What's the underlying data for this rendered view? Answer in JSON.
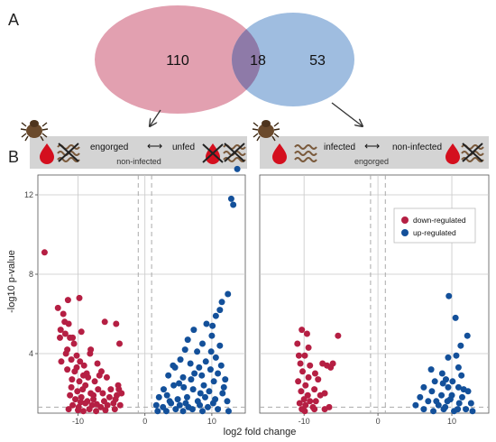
{
  "panels": {
    "a": "A",
    "b": "B"
  },
  "venn": {
    "left_only": "110",
    "overlap": "18",
    "right_only": "53",
    "left_color": "#e2a0b0",
    "right_color": "#9fbde0",
    "overlap_color": "#8e7aa8"
  },
  "conditions": {
    "left": {
      "from": "engorged",
      "arrow": "⟷",
      "to": "unfed",
      "sub": "non-infected"
    },
    "right": {
      "from": "infected",
      "arrow": "⟷",
      "to": "non-infected",
      "sub": "engorged"
    }
  },
  "colors": {
    "down": "#b51f43",
    "up": "#13509a",
    "banner": "#d4d4d4",
    "grid": "#c8c8c8"
  },
  "legend": {
    "down": "down-regulated",
    "up": "up-regulated"
  },
  "chart_data": [
    {
      "type": "scatter",
      "title": "",
      "xlabel": "log2 fold change",
      "ylabel": "-log10 p-value",
      "xlim": [
        -16,
        15
      ],
      "ylim": [
        1,
        13
      ],
      "xticks": [
        -10,
        0,
        10
      ],
      "yticks": [
        4,
        8,
        12
      ],
      "thresholds": {
        "x": [
          -1,
          1
        ],
        "y": 1.3
      },
      "series": [
        {
          "name": "down-regulated",
          "points": [
            [
              -15,
              9.1
            ],
            [
              -11.5,
              6.7
            ],
            [
              -12.2,
              6.0
            ],
            [
              -12,
              5.6
            ],
            [
              -11.4,
              5.5
            ],
            [
              -12.6,
              5.2
            ],
            [
              -11.9,
              5.0
            ],
            [
              -11.2,
              4.8
            ],
            [
              -10.6,
              4.5
            ],
            [
              -9.8,
              6.8
            ],
            [
              -9.5,
              5.1
            ],
            [
              -8.2,
              4.0
            ],
            [
              -10.2,
              3.9
            ],
            [
              -11,
              3.7
            ],
            [
              -9.7,
              3.6
            ],
            [
              -11.6,
              3.2
            ],
            [
              -10.5,
              3.1
            ],
            [
              -9.1,
              3.4
            ],
            [
              -8.7,
              3.0
            ],
            [
              -10.9,
              2.7
            ],
            [
              -9.8,
              2.6
            ],
            [
              -8.5,
              2.8
            ],
            [
              -7.5,
              2.6
            ],
            [
              -6.8,
              2.9
            ],
            [
              -11,
              2.3
            ],
            [
              -10.1,
              2.1
            ],
            [
              -9.3,
              2.2
            ],
            [
              -8.1,
              2.0
            ],
            [
              -7,
              2.2
            ],
            [
              -6.3,
              2.0
            ],
            [
              -5.1,
              2.2
            ],
            [
              -4,
              2.4
            ],
            [
              -11.2,
              1.9
            ],
            [
              -10.4,
              1.7
            ],
            [
              -9.5,
              1.8
            ],
            [
              -8.6,
              1.6
            ],
            [
              -7.7,
              1.7
            ],
            [
              -6.1,
              1.6
            ],
            [
              -5.3,
              1.8
            ],
            [
              -4.2,
              1.9
            ],
            [
              -3.5,
              2.0
            ],
            [
              -10.8,
              1.4
            ],
            [
              -9.9,
              1.3
            ],
            [
              -8.9,
              1.5
            ],
            [
              -7.9,
              1.4
            ],
            [
              -6.6,
              1.3
            ],
            [
              -5.6,
              1.4
            ],
            [
              -4.7,
              1.5
            ],
            [
              -3.7,
              1.4
            ],
            [
              -10,
              1.15
            ],
            [
              -9.2,
              1.1
            ],
            [
              -8.3,
              1.2
            ],
            [
              -7.3,
              1.1
            ],
            [
              -5.9,
              1.15
            ],
            [
              -4.5,
              1.2
            ],
            [
              -3.9,
              2.2
            ],
            [
              -6,
              5.6
            ],
            [
              -4.3,
              5.5
            ],
            [
              -3.8,
              4.5
            ],
            [
              -12.7,
              4.8
            ],
            [
              -11.6,
              4.2
            ],
            [
              -12.5,
              3.6
            ],
            [
              -13,
              6.3
            ],
            [
              -8.1,
              4.2
            ],
            [
              -6.5,
              3.1
            ],
            [
              -7.1,
              3.5
            ],
            [
              -9.2,
              2.9
            ],
            [
              -10.8,
              4.8
            ],
            [
              -11.8,
              4.0
            ],
            [
              -10.2,
              3.3
            ],
            [
              -7.7,
              1.9
            ],
            [
              -8.9,
              2.4
            ],
            [
              -5.7,
              2.8
            ],
            [
              -4.4,
              1.7
            ],
            [
              -11.4,
              1.2
            ],
            [
              -9.6,
              1.55
            ],
            [
              -7.2,
              1.45
            ]
          ]
        },
        {
          "name": "up-regulated",
          "points": [
            [
              13.8,
              13.3
            ],
            [
              13.2,
              11.5
            ],
            [
              12.9,
              11.8
            ],
            [
              12.4,
              7.0
            ],
            [
              11.5,
              6.6
            ],
            [
              11.2,
              6.2
            ],
            [
              10.6,
              5.9
            ],
            [
              10.1,
              5.4
            ],
            [
              9.2,
              5.5
            ],
            [
              7.3,
              5.2
            ],
            [
              6.4,
              4.7
            ],
            [
              10,
              4.9
            ],
            [
              11.2,
              4.4
            ],
            [
              8.6,
              4.5
            ],
            [
              6,
              4.2
            ],
            [
              7.8,
              4.1
            ],
            [
              10.6,
              3.8
            ],
            [
              9.1,
              3.6
            ],
            [
              5.3,
              3.7
            ],
            [
              4.5,
              3.3
            ],
            [
              6.8,
              3.5
            ],
            [
              8.1,
              3.3
            ],
            [
              9.8,
              3.2
            ],
            [
              11.4,
              3.4
            ],
            [
              3.5,
              2.9
            ],
            [
              5.7,
              2.8
            ],
            [
              6.9,
              2.7
            ],
            [
              8.5,
              2.9
            ],
            [
              10.3,
              2.6
            ],
            [
              12,
              2.7
            ],
            [
              2.8,
              2.2
            ],
            [
              4.3,
              2.4
            ],
            [
              5.8,
              2.3
            ],
            [
              7.2,
              2.2
            ],
            [
              8.8,
              2.4
            ],
            [
              9.6,
              2.1
            ],
            [
              11.6,
              2.0
            ],
            [
              2.1,
              1.8
            ],
            [
              3.3,
              1.9
            ],
            [
              4.9,
              1.7
            ],
            [
              6.3,
              1.8
            ],
            [
              7.9,
              1.6
            ],
            [
              9,
              1.8
            ],
            [
              10.5,
              1.7
            ],
            [
              1.7,
              1.4
            ],
            [
              2.7,
              1.3
            ],
            [
              3.9,
              1.5
            ],
            [
              5.2,
              1.4
            ],
            [
              6.5,
              1.3
            ],
            [
              8.2,
              1.4
            ],
            [
              9.4,
              1.3
            ],
            [
              10.2,
              1.5
            ],
            [
              12.3,
              1.6
            ],
            [
              1.9,
              1.1
            ],
            [
              3.2,
              1.1
            ],
            [
              4.6,
              1.2
            ],
            [
              5.7,
              1.1
            ],
            [
              7.1,
              1.2
            ],
            [
              8.6,
              1.1
            ],
            [
              10.9,
              1.2
            ],
            [
              12.5,
              1.1
            ],
            [
              9.9,
              4.1
            ],
            [
              7.4,
              3.0
            ],
            [
              5.1,
              2.5
            ],
            [
              3.7,
              1.6
            ],
            [
              10.9,
              3.0
            ],
            [
              11.8,
              2.3
            ],
            [
              6.1,
              1.5
            ],
            [
              4.2,
              3.4
            ],
            [
              8.3,
              2.0
            ]
          ]
        }
      ]
    },
    {
      "type": "scatter",
      "title": "",
      "xlabel": "log2 fold change",
      "ylabel": "-log10 p-value",
      "xlim": [
        -16,
        15
      ],
      "ylim": [
        1,
        13
      ],
      "xticks": [
        -10,
        0,
        10
      ],
      "yticks": [
        4,
        8,
        12
      ],
      "thresholds": {
        "x": [
          -1,
          1
        ],
        "y": 1.3
      },
      "series": [
        {
          "name": "down-regulated",
          "points": [
            [
              -10.3,
              5.2
            ],
            [
              -9.6,
              5.0
            ],
            [
              -10.9,
              4.5
            ],
            [
              -9.4,
              4.3
            ],
            [
              -10.7,
              3.9
            ],
            [
              -9.9,
              3.9
            ],
            [
              -10.5,
              3.5
            ],
            [
              -9.2,
              3.4
            ],
            [
              -8.5,
              3.0
            ],
            [
              -10.2,
              3.1
            ],
            [
              -9.4,
              2.8
            ],
            [
              -10.8,
              2.6
            ],
            [
              -9.8,
              2.4
            ],
            [
              -8.6,
              2.2
            ],
            [
              -10.4,
              2.1
            ],
            [
              -9.5,
              1.9
            ],
            [
              -10,
              1.7
            ],
            [
              -9.2,
              1.6
            ],
            [
              -8.8,
              1.3
            ],
            [
              -10.6,
              1.5
            ],
            [
              -9.8,
              1.4
            ],
            [
              -9.9,
              1.1
            ],
            [
              -10.3,
              1.2
            ],
            [
              -8.4,
              1.6
            ],
            [
              -7.8,
              1.9
            ],
            [
              -8.1,
              2.7
            ],
            [
              -7.5,
              3.5
            ],
            [
              -6.9,
              3.4
            ],
            [
              -6.1,
              3.5
            ],
            [
              -5.4,
              4.9
            ],
            [
              -7.2,
              2.0
            ],
            [
              -6.6,
              1.3
            ],
            [
              -7.2,
              1.2
            ],
            [
              -6.4,
              3.3
            ],
            [
              -8.6,
              1.2
            ]
          ]
        },
        {
          "name": "up-regulated",
          "points": [
            [
              9.6,
              6.9
            ],
            [
              10.5,
              5.8
            ],
            [
              12.1,
              4.9
            ],
            [
              11.2,
              4.4
            ],
            [
              10.6,
              3.9
            ],
            [
              9.5,
              3.8
            ],
            [
              10.9,
              3.3
            ],
            [
              8.7,
              3.0
            ],
            [
              7.2,
              3.2
            ],
            [
              11.3,
              2.9
            ],
            [
              9.2,
              2.7
            ],
            [
              8.8,
              2.5
            ],
            [
              10.9,
              2.3
            ],
            [
              9.5,
              2.3
            ],
            [
              12.2,
              2.1
            ],
            [
              11.6,
              2.2
            ],
            [
              6.2,
              2.3
            ],
            [
              7.3,
              2.1
            ],
            [
              8.6,
              1.9
            ],
            [
              10,
              1.9
            ],
            [
              11.4,
              1.8
            ],
            [
              6.8,
              1.6
            ],
            [
              5.7,
              1.8
            ],
            [
              8.2,
              1.4
            ],
            [
              9.4,
              1.6
            ],
            [
              11,
              1.5
            ],
            [
              12.6,
              1.5
            ],
            [
              5.1,
              1.4
            ],
            [
              6.2,
              1.2
            ],
            [
              7.5,
              1.1
            ],
            [
              8.9,
              1.2
            ],
            [
              10.3,
              1.1
            ],
            [
              12.8,
              1.1
            ],
            [
              7.9,
              1.6
            ],
            [
              9.1,
              1.3
            ],
            [
              11.9,
              1.2
            ],
            [
              10.1,
              2.6
            ],
            [
              7.7,
              2.6
            ],
            [
              9.8,
              1.7
            ],
            [
              10.8,
              1.2
            ]
          ]
        }
      ]
    }
  ]
}
